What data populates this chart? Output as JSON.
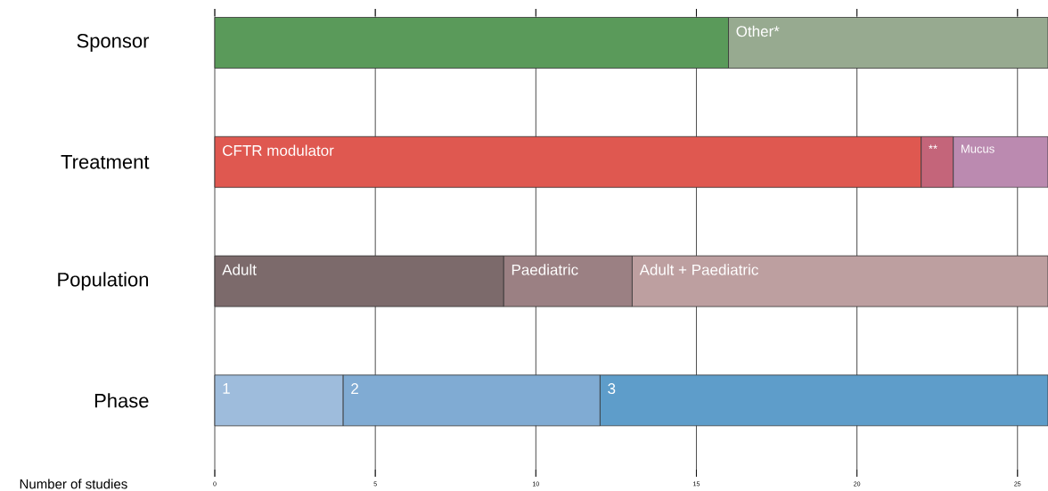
{
  "chart_data": {
    "type": "bar",
    "orientation": "horizontal",
    "stacked": true,
    "categories": [
      "Sponsor",
      "Treatment",
      "Population",
      "Phase"
    ],
    "xlabel": "Number of studies",
    "xlim": [
      0,
      25.95
    ],
    "xticks": [
      0,
      5,
      10,
      15,
      20,
      25
    ],
    "grid": "x",
    "series": [
      {
        "color": "#5a9a5a",
        "values": [
          16,
          null,
          null,
          null
        ]
      },
      {
        "name": "Other*",
        "color": "#97aa90",
        "values": [
          9.95,
          null,
          null,
          null
        ]
      },
      {
        "name": "CFTR modulator",
        "color": "#df5850",
        "values": [
          null,
          22,
          null,
          null
        ]
      },
      {
        "name": "**",
        "color": "#c4657a",
        "values": [
          null,
          1,
          null,
          null
        ]
      },
      {
        "name": "Mucus",
        "color": "#bb8ab0",
        "values": [
          null,
          2.95,
          null,
          null
        ]
      },
      {
        "name": "Adult",
        "color": "#7c6a6b",
        "values": [
          null,
          null,
          9,
          null
        ]
      },
      {
        "name": "Paediatric",
        "color": "#9b8083",
        "values": [
          null,
          null,
          4,
          null
        ]
      },
      {
        "name": "Adult + Paediatric",
        "color": "#bd9fa0",
        "values": [
          null,
          null,
          12.95,
          null
        ]
      },
      {
        "name": "1",
        "color": "#9ebcdc",
        "values": [
          null,
          null,
          null,
          4
        ]
      },
      {
        "name": "2",
        "color": "#80abd3",
        "values": [
          null,
          null,
          null,
          8
        ]
      },
      {
        "name": "3",
        "color": "#5e9dca",
        "values": [
          null,
          null,
          null,
          13.95
        ]
      }
    ]
  }
}
